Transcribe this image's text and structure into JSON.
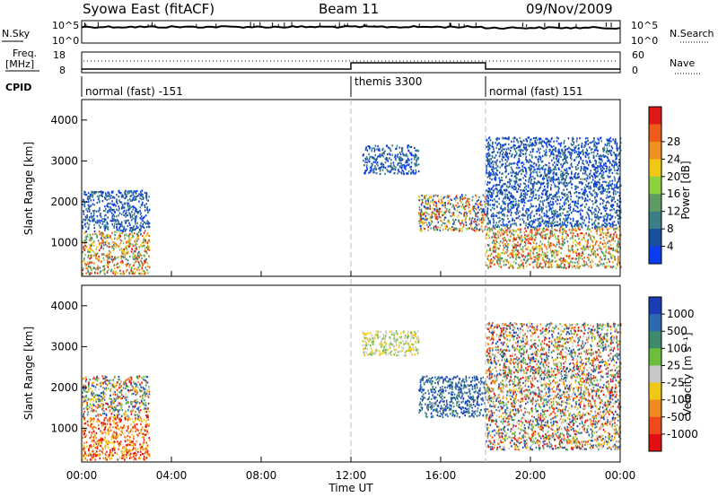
{
  "header": {
    "station": "Syowa East (fitACF)",
    "beam": "Beam 11",
    "date": "09/Nov/2009"
  },
  "top_panels": {
    "nsky_label": "N.Sky",
    "nsky_ticks": [
      "10^5",
      "10^0"
    ],
    "nsearch_label": "N.Search",
    "freq_label_line1": "Freq.",
    "freq_label_line2": "[MHz]",
    "freq_ticks": [
      "18",
      "8"
    ],
    "nave_label": "Nave",
    "nave_ticks": [
      "60",
      "0"
    ],
    "cpid_label": "CPID",
    "cpid_segments": [
      {
        "start_hour": 0,
        "end_hour": 12,
        "label": "normal (fast) -151"
      },
      {
        "start_hour": 12,
        "end_hour": 18,
        "label": "themis 3300"
      },
      {
        "start_hour": 18,
        "end_hour": 24,
        "label": "normal (fast) 151"
      }
    ]
  },
  "chart_data": [
    {
      "type": "heatmap",
      "name": "Power",
      "ylabel": "Slant Range [km]",
      "xlabel": "Time UT",
      "xlim": [
        0,
        24
      ],
      "ylim": [
        180,
        4500
      ],
      "y_ticks": [
        "1000",
        "2000",
        "3000",
        "4000"
      ],
      "x_ticks": [
        "00:00",
        "04:00",
        "08:00",
        "12:00",
        "16:00",
        "20:00",
        "00:00"
      ],
      "colorbar_label": "Power [dB]",
      "colorbar_ticks": [
        "4",
        "8",
        "12",
        "16",
        "20",
        "24",
        "28"
      ],
      "colorbar_colors": [
        "#0a3cf0",
        "#1a4fa0",
        "#3a7f85",
        "#5f9a62",
        "#8cd23c",
        "#f0c814",
        "#f09020",
        "#f05a1a",
        "#e01818"
      ],
      "regions": [
        {
          "t0": 0.0,
          "t1": 3.0,
          "r0": 250,
          "r1": 1300,
          "level": "mixed-high"
        },
        {
          "t0": 0.0,
          "t1": 3.0,
          "r0": 1300,
          "r1": 2300,
          "level": "low"
        },
        {
          "t0": 12.5,
          "t1": 15.0,
          "r0": 2700,
          "r1": 3400,
          "level": "low"
        },
        {
          "t0": 15.0,
          "t1": 18.0,
          "r0": 1300,
          "r1": 2200,
          "level": "mixed"
        },
        {
          "t0": 18.0,
          "t1": 24.0,
          "r0": 400,
          "r1": 1400,
          "level": "mixed-high"
        },
        {
          "t0": 18.0,
          "t1": 24.0,
          "r0": 1400,
          "r1": 3600,
          "level": "low"
        }
      ]
    },
    {
      "type": "heatmap",
      "name": "Velocity",
      "ylabel": "Slant Range [km]",
      "xlabel": "Time UT",
      "xlim": [
        0,
        24
      ],
      "ylim": [
        180,
        4500
      ],
      "y_ticks": [
        "1000",
        "2000",
        "3000",
        "4000"
      ],
      "x_ticks": [
        "00:00",
        "04:00",
        "08:00",
        "12:00",
        "16:00",
        "20:00",
        "00:00"
      ],
      "colorbar_label": "Velocity [m s⁻¹]",
      "colorbar_ticks": [
        "1000",
        "500",
        "100",
        "25",
        "-25",
        "-100",
        "-500",
        "-1000"
      ],
      "colorbar_colors": [
        "#1a3cb4",
        "#2a6ab0",
        "#3f8a6a",
        "#6cbf3c",
        "#c8c8c8",
        "#f0c814",
        "#f08a20",
        "#f04a1a",
        "#e01010"
      ],
      "regions": [
        {
          "t0": 0.0,
          "t1": 3.0,
          "r0": 250,
          "r1": 1300,
          "level": "negative"
        },
        {
          "t0": 0.0,
          "t1": 3.0,
          "r0": 1300,
          "r1": 2300,
          "level": "mixed"
        },
        {
          "t0": 12.5,
          "t1": 15.0,
          "r0": 2800,
          "r1": 3400,
          "level": "near-zero"
        },
        {
          "t0": 15.0,
          "t1": 18.0,
          "r0": 1300,
          "r1": 2300,
          "level": "positive"
        },
        {
          "t0": 18.0,
          "t1": 24.0,
          "r0": 500,
          "r1": 1500,
          "level": "mixed"
        },
        {
          "t0": 18.0,
          "t1": 24.0,
          "r0": 1500,
          "r1": 3600,
          "level": "mixed"
        }
      ]
    }
  ]
}
